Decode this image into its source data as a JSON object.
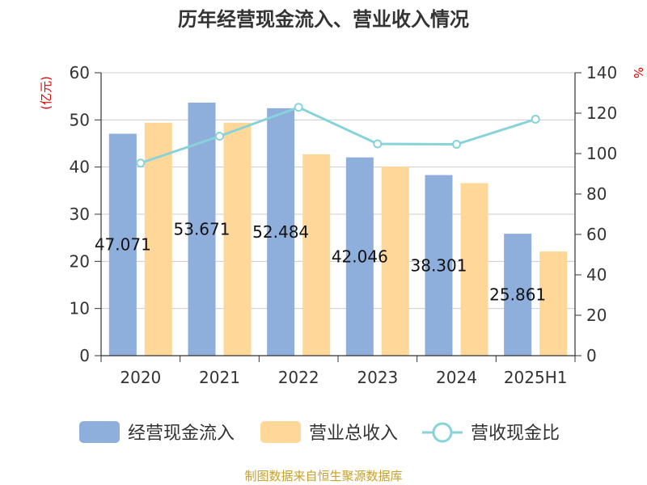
{
  "chart_data": {
    "type": "bar",
    "title": "历年经营现金流入、营业收入情况",
    "categories": [
      "2020",
      "2021",
      "2022",
      "2023",
      "2024",
      "2025H1"
    ],
    "series": [
      {
        "name": "经营现金流入",
        "type": "bar",
        "axis": "left",
        "color": "#8eaedc",
        "values": [
          47.07,
          53.67,
          52.48,
          42.05,
          38.3,
          25.86
        ],
        "labels": [
          "47.071",
          "53.671",
          "52.484",
          "42.046",
          "38.301",
          "25.861"
        ]
      },
      {
        "name": "营业总收入",
        "type": "bar",
        "axis": "left",
        "color": "#ffd899",
        "values": [
          49.4,
          49.4,
          42.7,
          40.1,
          36.6,
          22.1
        ]
      },
      {
        "name": "营收现金比",
        "type": "line",
        "axis": "right",
        "color": "#88d3d9",
        "values": [
          95.3,
          108.6,
          122.9,
          104.8,
          104.6,
          117.0
        ]
      }
    ],
    "y_left": {
      "label": "(亿元)",
      "ylim": [
        0,
        60
      ],
      "ticks": [
        "0",
        "10",
        "20",
        "30",
        "40",
        "50",
        "60"
      ]
    },
    "y_right": {
      "label": "%",
      "ylim": [
        0,
        140
      ],
      "ticks": [
        "0",
        "20",
        "40",
        "60",
        "80",
        "100",
        "120",
        "140"
      ]
    },
    "grid": true,
    "legend_position": "bottom",
    "source": "制图数据来自恒生聚源数据库",
    "colors": {
      "axis": "#333333",
      "grid": "#cccccc",
      "unit": "#e00000",
      "source": "#c8a02a"
    }
  }
}
